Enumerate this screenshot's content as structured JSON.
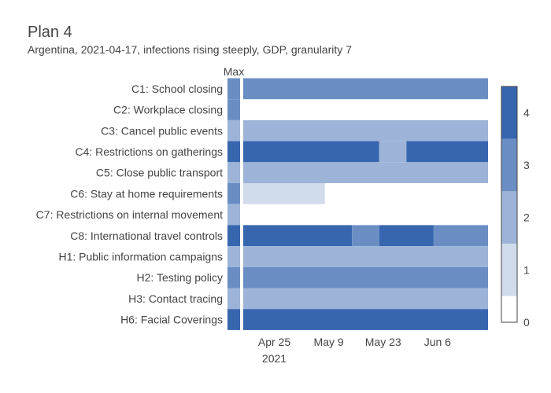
{
  "title": "Plan 4",
  "subtitle": "Argentina, 2021-04-17, infections rising steeply, GDP, granularity 7",
  "chart_data": {
    "type": "heatmap",
    "max_label": "Max",
    "rows": [
      "C1: School closing",
      "C2: Workplace closing",
      "C3: Cancel public events",
      "C4: Restrictions on gatherings",
      "C5: Close public transport",
      "C6: Stay at home requirements",
      "C7: Restrictions on internal movement",
      "C8: International travel controls",
      "H1: Public information campaigns",
      "H2: Testing policy",
      "H3: Contact tracing",
      "H6: Facial Coverings"
    ],
    "max_values": [
      3,
      3,
      2,
      4,
      2,
      3,
      2,
      4,
      2,
      3,
      2,
      4
    ],
    "x_start": "2021-04-17",
    "x_end": "2021-06-19",
    "x_ticks": [
      {
        "date": "2021-04-25",
        "label": "Apr 25",
        "sublabel": "2021"
      },
      {
        "date": "2021-05-09",
        "label": "May 9",
        "sublabel": ""
      },
      {
        "date": "2021-05-23",
        "label": "May 23",
        "sublabel": ""
      },
      {
        "date": "2021-06-06",
        "label": "Jun 6",
        "sublabel": ""
      }
    ],
    "segments": [
      [
        {
          "start": "2021-04-17",
          "end": "2021-06-19",
          "value": 3
        }
      ],
      [],
      [
        {
          "start": "2021-04-17",
          "end": "2021-06-19",
          "value": 2
        }
      ],
      [
        {
          "start": "2021-04-17",
          "end": "2021-05-22",
          "value": 4
        },
        {
          "start": "2021-05-22",
          "end": "2021-05-29",
          "value": 2
        },
        {
          "start": "2021-05-29",
          "end": "2021-06-19",
          "value": 4
        }
      ],
      [
        {
          "start": "2021-04-17",
          "end": "2021-06-19",
          "value": 2
        }
      ],
      [
        {
          "start": "2021-04-17",
          "end": "2021-05-08",
          "value": 1
        }
      ],
      [],
      [
        {
          "start": "2021-04-17",
          "end": "2021-05-15",
          "value": 4
        },
        {
          "start": "2021-05-15",
          "end": "2021-05-22",
          "value": 3
        },
        {
          "start": "2021-05-22",
          "end": "2021-06-05",
          "value": 4
        },
        {
          "start": "2021-06-05",
          "end": "2021-06-19",
          "value": 3
        }
      ],
      [
        {
          "start": "2021-04-17",
          "end": "2021-06-19",
          "value": 2
        }
      ],
      [
        {
          "start": "2021-04-17",
          "end": "2021-06-19",
          "value": 3
        }
      ],
      [
        {
          "start": "2021-04-17",
          "end": "2021-06-19",
          "value": 2
        }
      ],
      [
        {
          "start": "2021-04-17",
          "end": "2021-06-19",
          "value": 4
        }
      ]
    ],
    "colorscale": {
      "min": 0,
      "max": 4.5,
      "ticks": [
        0,
        1,
        2,
        3,
        4
      ],
      "colors": [
        "#ffffff",
        "#d0dbeb",
        "#9db4d8",
        "#6a8ec4",
        "#3766af"
      ]
    }
  }
}
